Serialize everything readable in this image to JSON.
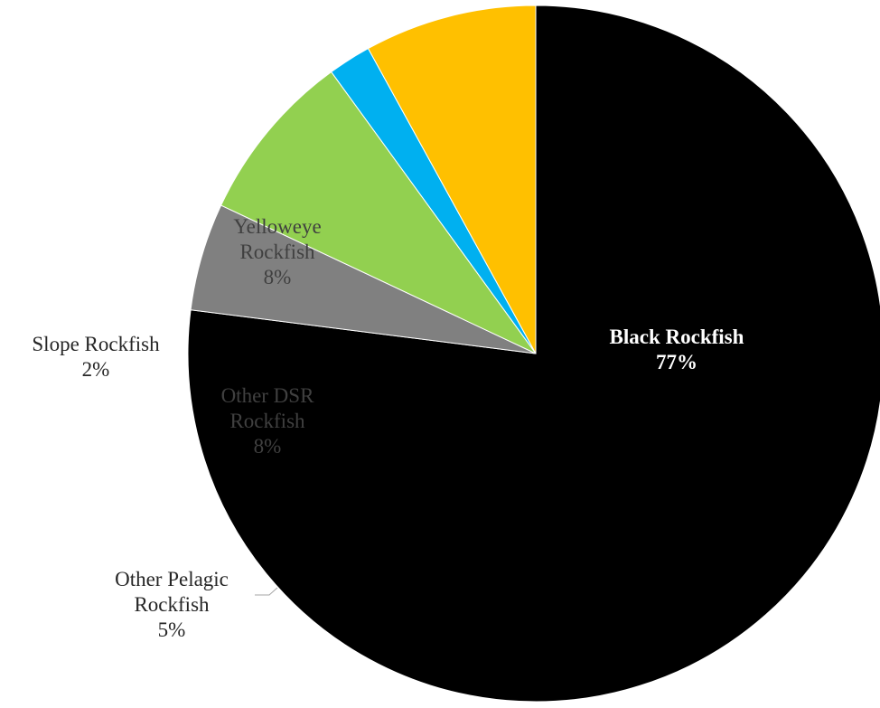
{
  "chart_data": {
    "type": "pie",
    "title": "",
    "slices": [
      {
        "name": "Black Rockfish",
        "value": 77,
        "percent_label": "77%",
        "color": "#000000",
        "label_lines": [
          "Black Rockfish",
          "77%"
        ],
        "label_color": "#ffffff",
        "label_position": "inside"
      },
      {
        "name": "Other Pelagic Rockfish",
        "value": 5,
        "percent_label": "5%",
        "color": "#808080",
        "label_lines": [
          "Other Pelagic",
          "Rockfish",
          "5%"
        ],
        "label_color": "#262626",
        "label_position": "outside"
      },
      {
        "name": "Other DSR Rockfish",
        "value": 8,
        "percent_label": "8%",
        "color": "#92d050",
        "label_lines": [
          "Other DSR",
          "Rockfish",
          "8%"
        ],
        "label_color": "#404040",
        "label_position": "inside"
      },
      {
        "name": "Slope Rockfish",
        "value": 2,
        "percent_label": "2%",
        "color": "#00b0f0",
        "label_lines": [
          "Slope Rockfish",
          "2%"
        ],
        "label_color": "#262626",
        "label_position": "outside"
      },
      {
        "name": "Yelloweye Rockfish",
        "value": 8,
        "percent_label": "8%",
        "color": "#ffc000",
        "label_lines": [
          "Yelloweye",
          "Rockfish",
          "8%"
        ],
        "label_color": "#404040",
        "label_position": "inside"
      }
    ],
    "legend": "none"
  }
}
